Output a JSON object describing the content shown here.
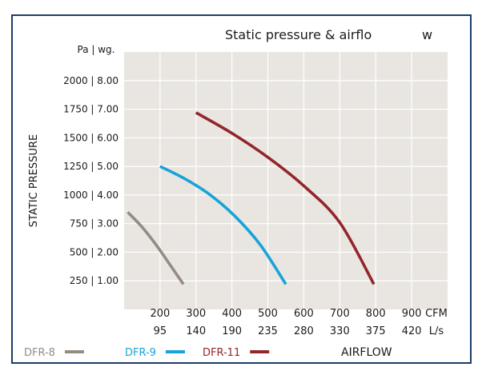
{
  "chart_data": {
    "type": "line",
    "title": "Static pressure & airflo",
    "title_suffix": "w",
    "ylabel": "STATIC PRESSURE",
    "xlabel": "AIRFLOW",
    "y_unit_label": "Pa | wg.",
    "x_unit_labels": [
      "CFM",
      "L/s"
    ],
    "xlim": [
      100,
      1000
    ],
    "ylim": [
      0,
      2250
    ],
    "y_ticks": [
      {
        "value": 250,
        "label": "250 | 1.00"
      },
      {
        "value": 500,
        "label": "500 | 2.00"
      },
      {
        "value": 750,
        "label": "750 | 3.00"
      },
      {
        "value": 1000,
        "label": "1000 | 4.00"
      },
      {
        "value": 1250,
        "label": "1250 | 5.00"
      },
      {
        "value": 1500,
        "label": "1500 | 6.00"
      },
      {
        "value": 1750,
        "label": "1750 | 7.00"
      },
      {
        "value": 2000,
        "label": "2000 | 8.00"
      }
    ],
    "x_ticks": [
      {
        "value": 200,
        "cfm": "200",
        "ls": "95"
      },
      {
        "value": 300,
        "cfm": "300",
        "ls": "140"
      },
      {
        "value": 400,
        "cfm": "400",
        "ls": "190"
      },
      {
        "value": 500,
        "cfm": "500",
        "ls": "235"
      },
      {
        "value": 600,
        "cfm": "600",
        "ls": "280"
      },
      {
        "value": 700,
        "cfm": "700",
        "ls": "330"
      },
      {
        "value": 800,
        "cfm": "800",
        "ls": "375"
      },
      {
        "value": 900,
        "cfm": "900",
        "ls": "420"
      }
    ],
    "grid": true,
    "legend_position": "bottom-left",
    "series": [
      {
        "name": "DFR-8",
        "color": "#968b82",
        "points": [
          [
            110,
            850
          ],
          [
            150,
            720
          ],
          [
            190,
            560
          ],
          [
            230,
            380
          ],
          [
            265,
            220
          ]
        ]
      },
      {
        "name": "DFR-9",
        "color": "#1aa3d8",
        "points": [
          [
            200,
            1250
          ],
          [
            270,
            1140
          ],
          [
            340,
            1000
          ],
          [
            410,
            810
          ],
          [
            480,
            560
          ],
          [
            550,
            220
          ]
        ]
      },
      {
        "name": "DFR-11",
        "color": "#93262b",
        "points": [
          [
            300,
            1720
          ],
          [
            400,
            1540
          ],
          [
            500,
            1330
          ],
          [
            600,
            1080
          ],
          [
            700,
            760
          ],
          [
            795,
            220
          ]
        ]
      }
    ]
  }
}
